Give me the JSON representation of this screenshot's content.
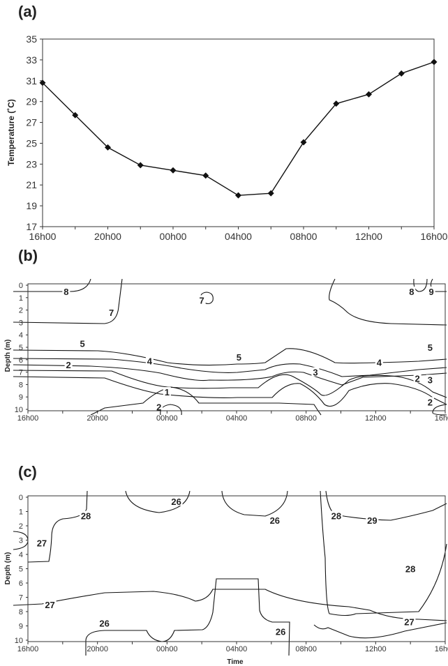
{
  "chart_data": [
    {
      "panel": "(a)",
      "type": "line",
      "ylabel": "Temperature  (˚C)",
      "xlabel": "",
      "categories": [
        "16h00",
        "18h00",
        "20h00",
        "22h00",
        "00h00",
        "02h00",
        "04h00",
        "06h00",
        "08h00",
        "10h00",
        "12h00",
        "14h00",
        "16h00"
      ],
      "x_tick_labels": [
        "16h00",
        "20h00",
        "00h00",
        "04h00",
        "08h00",
        "12h00",
        "16h00"
      ],
      "y_ticks": [
        17,
        19,
        21,
        23,
        25,
        27,
        29,
        31,
        33,
        35
      ],
      "ylim": [
        17,
        35
      ],
      "series": [
        {
          "values": [
            30.8,
            27.7,
            24.6,
            22.9,
            22.4,
            21.9,
            20.0,
            20.2,
            25.1,
            28.8,
            29.7,
            31.7,
            32.8
          ]
        }
      ],
      "marker": "diamond",
      "grid": false
    },
    {
      "panel": "(b)",
      "type": "contour",
      "ylabel": "Depth (m)",
      "xlabel": "",
      "x_tick_labels": [
        "16h00",
        "20h00",
        "00h00",
        "04h00",
        "08h00",
        "12h00",
        "16h00"
      ],
      "y_ticks": [
        0,
        1,
        2,
        3,
        4,
        5,
        6,
        7,
        8,
        9,
        10
      ],
      "y_inverted": true,
      "ylim": [
        0,
        10
      ],
      "contour_labels": [
        {
          "text": "8",
          "t": 3.3,
          "d": 0.5
        },
        {
          "text": "7",
          "t": 7.2,
          "d": 2.2
        },
        {
          "text": "7",
          "t": 15.0,
          "d": 1.2
        },
        {
          "text": "5",
          "t": 4.7,
          "d": 4.7
        },
        {
          "text": "4",
          "t": 10.5,
          "d": 6.1
        },
        {
          "text": "2",
          "t": 3.5,
          "d": 6.4
        },
        {
          "text": "5",
          "t": 18.2,
          "d": 5.8
        },
        {
          "text": "1",
          "t": 12.0,
          "d": 8.6
        },
        {
          "text": "2",
          "t": 11.3,
          "d": 9.8
        },
        {
          "text": "3",
          "t": 24.8,
          "d": 7.0
        },
        {
          "text": "4",
          "t": 30.3,
          "d": 6.2
        },
        {
          "text": "8",
          "t": 33.1,
          "d": 0.5
        },
        {
          "text": "9",
          "t": 34.8,
          "d": 0.5
        },
        {
          "text": "5",
          "t": 34.7,
          "d": 5.0
        },
        {
          "text": "2",
          "t": 33.6,
          "d": 7.5
        },
        {
          "text": "3",
          "t": 34.7,
          "d": 7.6
        },
        {
          "text": "2",
          "t": 34.7,
          "d": 9.4
        }
      ]
    },
    {
      "panel": "(c)",
      "type": "contour",
      "ylabel": "Depth (m)",
      "xlabel": "Time",
      "x_tick_labels": [
        "16h00",
        "20h00",
        "00h00",
        "04h00",
        "08h00",
        "12h00",
        "16h00"
      ],
      "y_ticks": [
        0,
        1,
        2,
        3,
        4,
        5,
        6,
        7,
        8,
        9,
        10
      ],
      "y_inverted": true,
      "ylim": [
        0,
        10
      ],
      "contour_labels": [
        {
          "text": "26",
          "t": 12.8,
          "d": 0.3
        },
        {
          "text": "28",
          "t": 5.0,
          "d": 1.3
        },
        {
          "text": "27",
          "t": 1.2,
          "d": 3.2
        },
        {
          "text": "26",
          "t": 21.3,
          "d": 1.6
        },
        {
          "text": "28",
          "t": 26.6,
          "d": 1.3
        },
        {
          "text": "29",
          "t": 29.7,
          "d": 1.6
        },
        {
          "text": "28",
          "t": 33.0,
          "d": 5.0
        },
        {
          "text": "27",
          "t": 1.9,
          "d": 7.5
        },
        {
          "text": "26",
          "t": 6.6,
          "d": 8.8
        },
        {
          "text": "26",
          "t": 21.8,
          "d": 9.4
        },
        {
          "text": "27",
          "t": 32.9,
          "d": 8.7
        }
      ]
    }
  ]
}
